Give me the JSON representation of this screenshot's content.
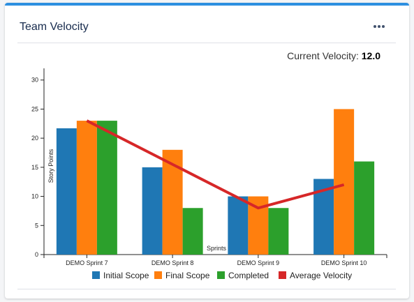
{
  "widget": {
    "title": "Team Velocity",
    "menu_icon": "ellipsis-icon",
    "velocity_label": "Current Velocity:",
    "velocity_value": "12.0"
  },
  "chart_data": {
    "type": "bar",
    "categories": [
      "DEMO Sprint 7",
      "DEMO Sprint 8",
      "DEMO Sprint 9",
      "DEMO Sprint 10"
    ],
    "series": [
      {
        "name": "Initial Scope",
        "values": [
          21.7,
          15,
          10,
          13
        ],
        "color": "#1f77b4"
      },
      {
        "name": "Final Scope",
        "values": [
          23,
          18,
          10,
          25
        ],
        "color": "#ff7f0e"
      },
      {
        "name": "Completed",
        "values": [
          23,
          8,
          8,
          16
        ],
        "color": "#2ca02c"
      }
    ],
    "line_series": {
      "name": "Average Velocity",
      "values": [
        23,
        null,
        8,
        12
      ],
      "color": "#d62728"
    },
    "xlabel": "Sprints",
    "ylabel": "Story Points",
    "ylim": [
      0,
      32
    ],
    "yticks": [
      0,
      5,
      10,
      15,
      20,
      25,
      30
    ],
    "grid": false,
    "legend_position": "bottom"
  }
}
